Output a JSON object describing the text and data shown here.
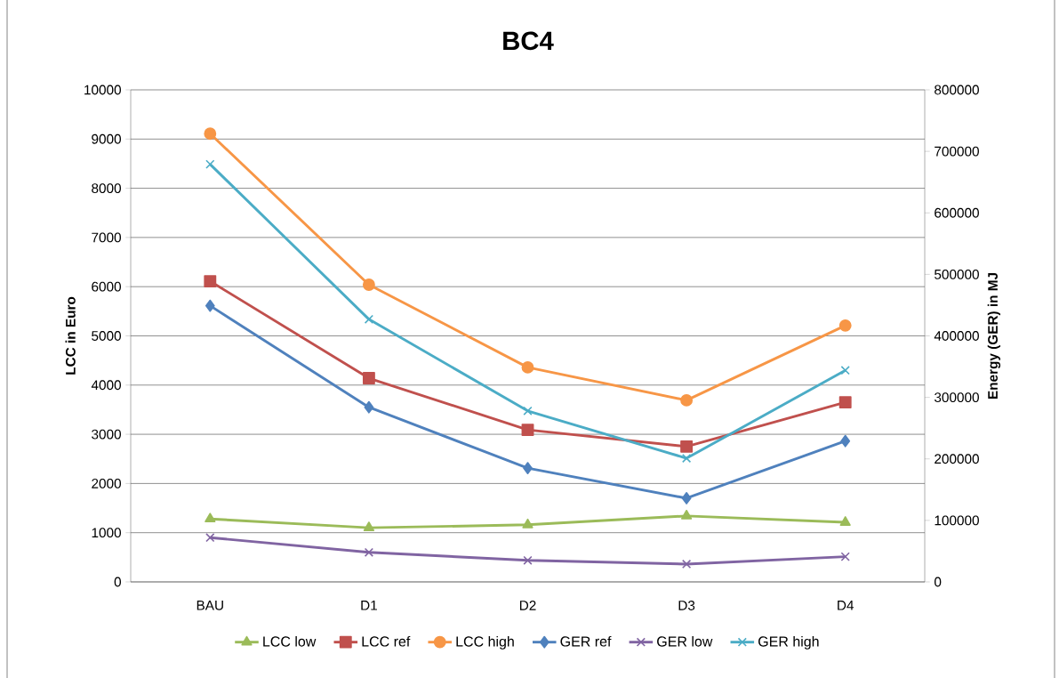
{
  "chart_data": {
    "type": "line",
    "title": "BC4",
    "ylabel": "LCC in Euro",
    "y2label": "Energy (GER) in MJ",
    "categories": [
      "BAU",
      "D1",
      "D2",
      "D3",
      "D4"
    ],
    "series": [
      {
        "name": "LCC low",
        "color": "#9bbb59",
        "marker": "triangle",
        "values": [
          1280,
          1100,
          1160,
          1340,
          1210
        ]
      },
      {
        "name": "LCC ref",
        "color": "#c0504d",
        "marker": "square",
        "values": [
          6110,
          4140,
          3090,
          2750,
          3650
        ]
      },
      {
        "name": "LCC high",
        "color": "#f79646",
        "marker": "circle",
        "values": [
          9110,
          6040,
          4360,
          3690,
          5210
        ]
      },
      {
        "name": "GER ref",
        "color": "#4f81bd",
        "marker": "diamond",
        "axis": "y2",
        "values": [
          449000,
          284000,
          185000,
          136000,
          229000
        ]
      },
      {
        "name": "GER low",
        "color": "#8064a2",
        "marker": "cross",
        "axis": "y2",
        "values": [
          72000,
          48000,
          35000,
          29000,
          41000
        ]
      },
      {
        "name": "GER high",
        "color": "#4bacc6",
        "marker": "cross",
        "axis": "y2",
        "values": [
          679000,
          427000,
          278000,
          201000,
          344000
        ]
      }
    ],
    "ylim": [
      0,
      10000
    ],
    "yticks": [
      0,
      1000,
      2000,
      3000,
      4000,
      5000,
      6000,
      7000,
      8000,
      9000,
      10000
    ],
    "y2lim": [
      0,
      800000
    ],
    "y2ticks": [
      0,
      100000,
      200000,
      300000,
      400000,
      500000,
      600000,
      700000,
      800000
    ],
    "grid": "y",
    "legend": "bottom",
    "line_style": "solid"
  }
}
